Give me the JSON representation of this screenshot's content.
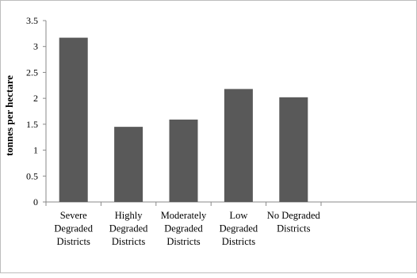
{
  "chart_data": {
    "type": "bar",
    "title": "",
    "xlabel": "",
    "ylabel": "tonnes per hectare",
    "ylim": [
      0,
      3.5
    ],
    "yticks": [
      "0",
      "0.5",
      "1",
      "1.5",
      "2",
      "2.5",
      "3",
      "3.5"
    ],
    "grid": false,
    "legend": "none",
    "bar_color": "#595959",
    "categories": [
      "Severe Degraded Districts",
      "Highly Degraded Districts",
      "Moderately Degraded Districts",
      "Low Degraded Districts",
      "No Degraded Districts"
    ],
    "category_lines": [
      [
        "Severe",
        "Degraded",
        "Districts"
      ],
      [
        "Highly",
        "Degraded",
        "Districts"
      ],
      [
        "Moderately",
        "Degraded",
        "Districts"
      ],
      [
        "Low",
        "Degraded",
        "Districts"
      ],
      [
        "No Degraded",
        "Districts"
      ]
    ],
    "values": [
      3.17,
      1.45,
      1.59,
      2.18,
      2.02
    ]
  }
}
